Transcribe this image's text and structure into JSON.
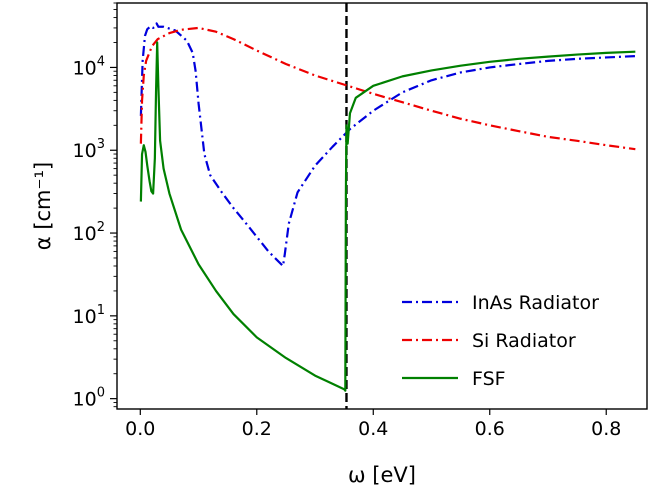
{
  "chart_data": {
    "type": "line",
    "xlabel": "ω [eV]",
    "ylabel": "α [cm⁻¹]",
    "yscale": "log",
    "xlim": [
      -0.04,
      0.87
    ],
    "ylim": [
      0.75,
      60000
    ],
    "grid": false,
    "legend_position": "bottom-right",
    "x_ticks": [
      {
        "value": 0.0,
        "label": "0.0"
      },
      {
        "value": 0.2,
        "label": "0.2"
      },
      {
        "value": 0.4,
        "label": "0.4"
      },
      {
        "value": 0.6,
        "label": "0.6"
      },
      {
        "value": 0.8,
        "label": "0.8"
      }
    ],
    "y_ticks": [
      {
        "value": 1,
        "base": "10",
        "exp": "0"
      },
      {
        "value": 10,
        "base": "10",
        "exp": "1"
      },
      {
        "value": 100,
        "base": "10",
        "exp": "2"
      },
      {
        "value": 1000,
        "base": "10",
        "exp": "3"
      },
      {
        "value": 10000,
        "base": "10",
        "exp": "4"
      }
    ],
    "vline": {
      "x": 0.354,
      "color": "#000000",
      "style": "dashed"
    },
    "series": [
      {
        "name": "InAs Radiator",
        "color": "#0000dd",
        "style": "dashdot",
        "points": [
          [
            0.001,
            2600
          ],
          [
            0.004,
            12000
          ],
          [
            0.008,
            24000
          ],
          [
            0.012,
            29000
          ],
          [
            0.018,
            31500
          ],
          [
            0.022,
            30000
          ],
          [
            0.025,
            31000
          ],
          [
            0.028,
            34000
          ],
          [
            0.031,
            31000
          ],
          [
            0.04,
            31000
          ],
          [
            0.06,
            28000
          ],
          [
            0.08,
            21000
          ],
          [
            0.09,
            15000
          ],
          [
            0.095,
            9000
          ],
          [
            0.1,
            3700
          ],
          [
            0.11,
            900
          ],
          [
            0.12,
            500
          ],
          [
            0.14,
            310
          ],
          [
            0.16,
            200
          ],
          [
            0.18,
            135
          ],
          [
            0.2,
            90
          ],
          [
            0.22,
            60
          ],
          [
            0.245,
            40
          ],
          [
            0.248,
            55
          ],
          [
            0.255,
            130
          ],
          [
            0.27,
            310
          ],
          [
            0.3,
            650
          ],
          [
            0.33,
            1100
          ],
          [
            0.36,
            1800
          ],
          [
            0.4,
            3000
          ],
          [
            0.45,
            5000
          ],
          [
            0.5,
            7000
          ],
          [
            0.55,
            8700
          ],
          [
            0.6,
            10000
          ],
          [
            0.65,
            11000
          ],
          [
            0.7,
            12000
          ],
          [
            0.75,
            12700
          ],
          [
            0.8,
            13200
          ],
          [
            0.85,
            13700
          ]
        ]
      },
      {
        "name": "Si Radiator",
        "color": "#ee0000",
        "style": "dashdot",
        "points": [
          [
            0.001,
            1200
          ],
          [
            0.003,
            4000
          ],
          [
            0.006,
            8000
          ],
          [
            0.01,
            12000
          ],
          [
            0.02,
            18000
          ],
          [
            0.03,
            22000
          ],
          [
            0.05,
            26000
          ],
          [
            0.07,
            28500
          ],
          [
            0.1,
            30000
          ],
          [
            0.13,
            27000
          ],
          [
            0.16,
            22000
          ],
          [
            0.2,
            16000
          ],
          [
            0.25,
            11000
          ],
          [
            0.3,
            8000
          ],
          [
            0.35,
            6200
          ],
          [
            0.4,
            4800
          ],
          [
            0.45,
            3800
          ],
          [
            0.5,
            3000
          ],
          [
            0.55,
            2400
          ],
          [
            0.6,
            2000
          ],
          [
            0.65,
            1700
          ],
          [
            0.7,
            1450
          ],
          [
            0.75,
            1300
          ],
          [
            0.8,
            1150
          ],
          [
            0.85,
            1030
          ]
        ]
      },
      {
        "name": "FSF",
        "color": "#008000",
        "style": "solid",
        "points": [
          [
            0.001,
            240
          ],
          [
            0.003,
            900
          ],
          [
            0.006,
            1150
          ],
          [
            0.009,
            950
          ],
          [
            0.012,
            650
          ],
          [
            0.016,
            420
          ],
          [
            0.019,
            320
          ],
          [
            0.022,
            300
          ],
          [
            0.025,
            800
          ],
          [
            0.027,
            5000
          ],
          [
            0.029,
            20000
          ],
          [
            0.031,
            6000
          ],
          [
            0.034,
            1300
          ],
          [
            0.04,
            600
          ],
          [
            0.05,
            300
          ],
          [
            0.07,
            110
          ],
          [
            0.1,
            42
          ],
          [
            0.13,
            20
          ],
          [
            0.16,
            10.5
          ],
          [
            0.2,
            5.5
          ],
          [
            0.25,
            3.1
          ],
          [
            0.3,
            1.9
          ],
          [
            0.35,
            1.3
          ],
          [
            0.352,
            1.25
          ],
          [
            0.353,
            300
          ],
          [
            0.354,
            2000
          ],
          [
            0.356,
            1200
          ],
          [
            0.36,
            2800
          ],
          [
            0.37,
            4300
          ],
          [
            0.4,
            6000
          ],
          [
            0.45,
            7800
          ],
          [
            0.5,
            9200
          ],
          [
            0.55,
            10500
          ],
          [
            0.6,
            11700
          ],
          [
            0.65,
            12700
          ],
          [
            0.7,
            13500
          ],
          [
            0.75,
            14300
          ],
          [
            0.8,
            15000
          ],
          [
            0.85,
            15500
          ]
        ]
      }
    ]
  }
}
